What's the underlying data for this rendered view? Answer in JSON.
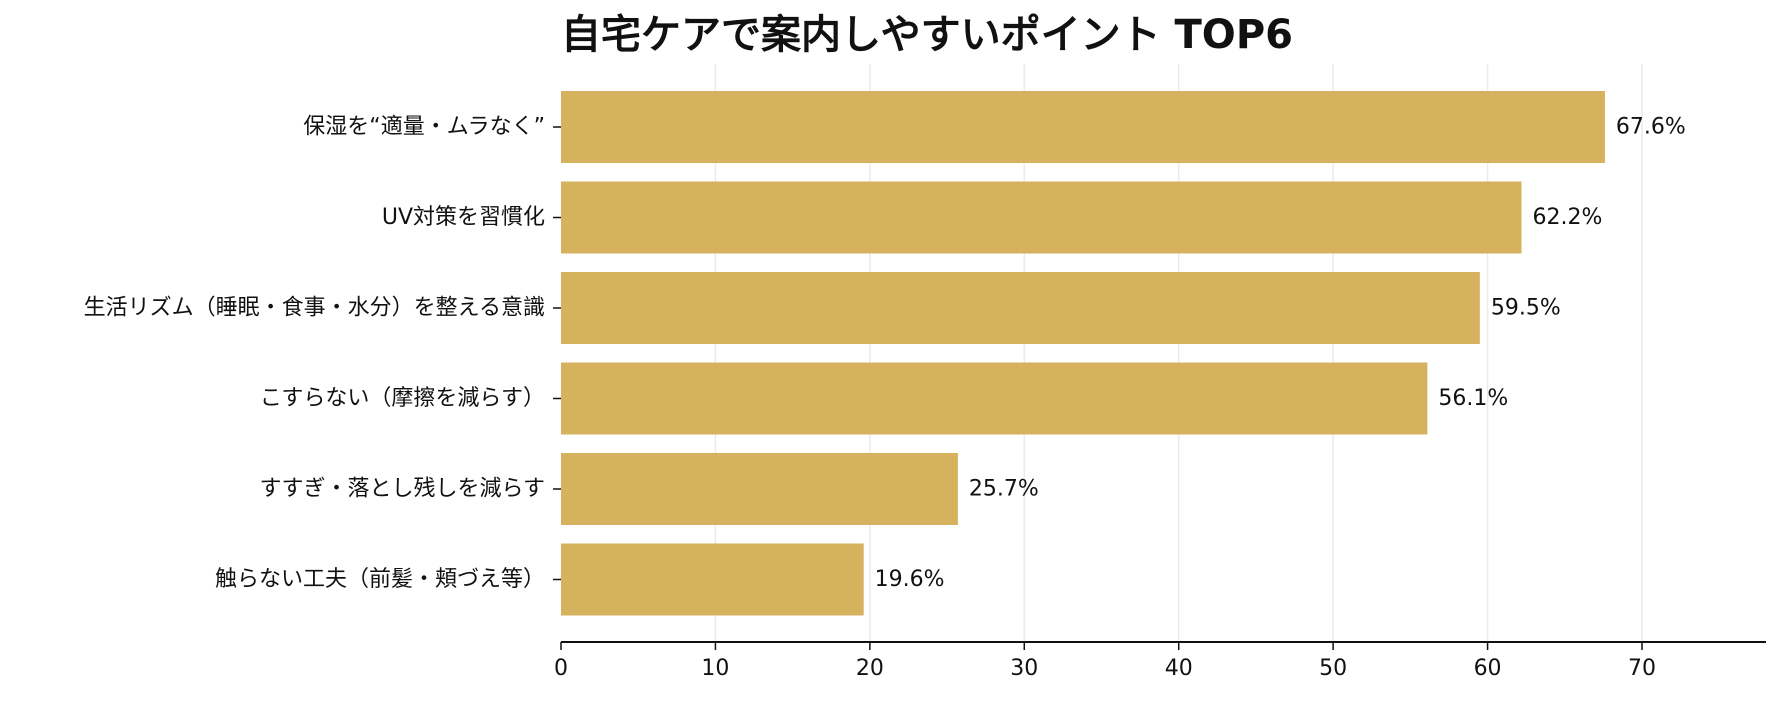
{
  "chart_data": {
    "type": "bar",
    "orientation": "horizontal",
    "title": "自宅ケアで案内しやすいポイント TOP6",
    "categories": [
      "保湿を“適量・ムラなく”",
      "UV対策を習慣化",
      "生活リズム（睡眠・食事・水分）を整える意識",
      "こすらない（摩擦を減らす）",
      "すすぎ・落とし残しを減らす",
      "触らない工夫（前髪・頬づえ等）"
    ],
    "values": [
      67.6,
      62.2,
      59.5,
      56.1,
      25.7,
      19.6
    ],
    "value_labels": [
      "67.6%",
      "62.2%",
      "59.5%",
      "56.1%",
      "25.7%",
      "19.6%"
    ],
    "xlim": [
      0,
      80
    ],
    "xticks": [
      0,
      10,
      20,
      30,
      40,
      50,
      60,
      70
    ],
    "grid": "vertical",
    "bar_color": "#D6B25E",
    "grid_color": "#EBEBEB",
    "axis_color": "#111111"
  }
}
